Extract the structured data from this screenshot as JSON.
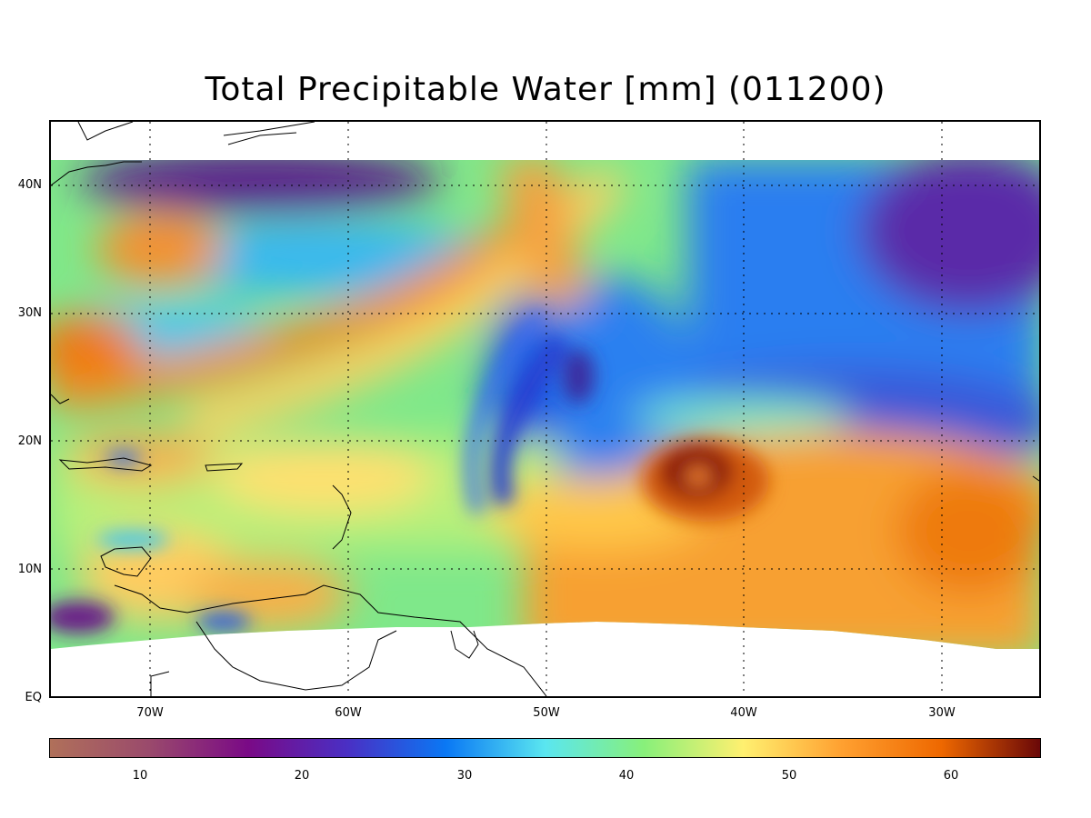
{
  "title": "Total Precipitable Water [mm]  (011200)",
  "map": {
    "lat_labels": [
      {
        "text": "40N",
        "lat": 40
      },
      {
        "text": "30N",
        "lat": 30
      },
      {
        "text": "20N",
        "lat": 20
      },
      {
        "text": "10N",
        "lat": 10
      },
      {
        "text": "EQ",
        "lat": 0
      }
    ],
    "lon_labels": [
      {
        "text": "70W",
        "lon": -70
      },
      {
        "text": "60W",
        "lon": -60
      },
      {
        "text": "50W",
        "lon": -50
      },
      {
        "text": "40W",
        "lon": -40
      },
      {
        "text": "30W",
        "lon": -30
      }
    ],
    "extent": {
      "lon_min": -75,
      "lon_max": -25,
      "lat_min": 0,
      "lat_max": 45
    },
    "data_coverage": {
      "lat_top": 42,
      "lat_bottom_approx": 4
    }
  },
  "colorbar": {
    "min": 5,
    "max": 66,
    "ticks": [
      {
        "text": "10",
        "value": 10
      },
      {
        "text": "20",
        "value": 20
      },
      {
        "text": "30",
        "value": 30
      },
      {
        "text": "40",
        "value": 40
      },
      {
        "text": "50",
        "value": 50
      },
      {
        "text": "60",
        "value": 60
      }
    ],
    "colors": [
      "#b0705a",
      "#9a4a6c",
      "#7a0a86",
      "#4a2fc4",
      "#0a78f4",
      "#5ae6f0",
      "#88f07a",
      "#fff070",
      "#ffa030",
      "#ee6800",
      "#6a0808"
    ]
  }
}
